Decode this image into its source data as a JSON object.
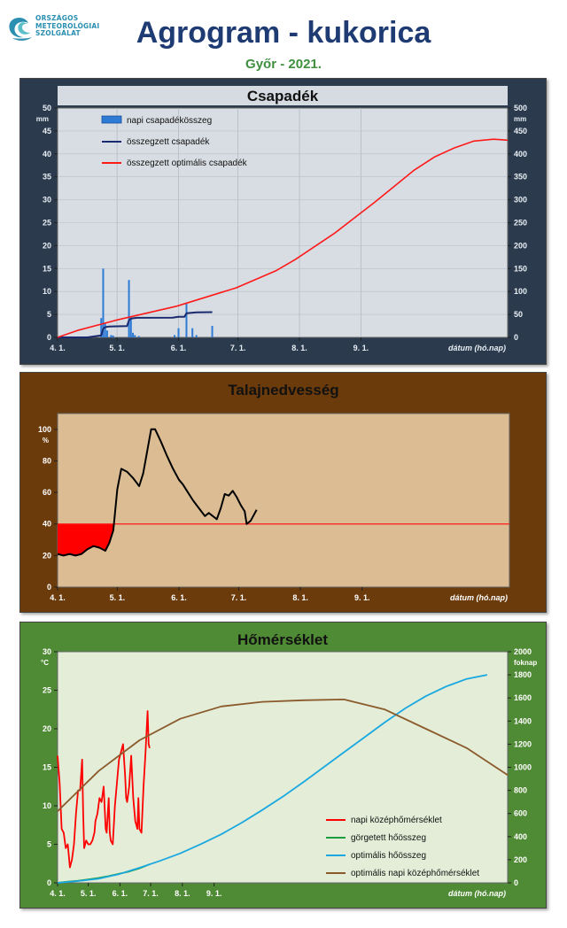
{
  "header": {
    "logo_lines": [
      "ORSZÁGOS",
      "METEOROLÓGIAI",
      "SZOLGÁLAT"
    ],
    "title": "Agrogram - kukorica",
    "subtitle": "Győr - 2021."
  },
  "colors": {
    "precip_panel_bg": "#2b3a4c",
    "precip_plot_bg": "#d8dde3",
    "soil_panel_bg": "#6b3b0c",
    "soil_plot_bg": "#dbbc93",
    "temp_panel_bg": "#4f8a34",
    "temp_plot_bg": "#e3edd8"
  },
  "chart_data": [
    {
      "type": "bar+line",
      "title": "Csapadék",
      "xlabel": "dátum (hó.nap)",
      "x_ticks": [
        "4. 1.",
        "5. 1.",
        "6. 1.",
        "7. 1.",
        "8. 1.",
        "9. 1."
      ],
      "x_range_days": [
        0,
        183
      ],
      "ylabel": "mm",
      "ylim": [
        0,
        50
      ],
      "y_ticks": [
        0,
        5,
        10,
        15,
        20,
        25,
        30,
        35,
        40,
        45,
        50
      ],
      "y2label": "mm",
      "y2lim": [
        0,
        500
      ],
      "y2_ticks": [
        0,
        50,
        100,
        150,
        200,
        250,
        300,
        350,
        400,
        450,
        500
      ],
      "series": [
        {
          "name": "napi csapadékösszeg",
          "kind": "bar",
          "axis": "left",
          "color": "#2e7bd6",
          "points": [
            [
              22,
              4.2
            ],
            [
              23,
              15
            ],
            [
              24,
              3
            ],
            [
              25,
              1.5
            ],
            [
              27,
              0.5
            ],
            [
              28,
              0.4
            ],
            [
              36,
              12.5
            ],
            [
              37,
              4
            ],
            [
              38,
              1
            ],
            [
              39,
              0.5
            ],
            [
              41,
              0.3
            ],
            [
              59,
              0.5
            ],
            [
              61,
              2
            ],
            [
              65,
              7.5
            ],
            [
              68,
              2
            ],
            [
              70,
              0.5
            ],
            [
              78,
              2.5
            ]
          ]
        },
        {
          "name": "összegzett csapadék",
          "kind": "line",
          "axis": "right",
          "color": "#1a2a6e",
          "points": [
            [
              0,
              0
            ],
            [
              15,
              0
            ],
            [
              22,
              4.2
            ],
            [
              23,
              19.2
            ],
            [
              24,
              22.2
            ],
            [
              26,
              23.7
            ],
            [
              35,
              24.6
            ],
            [
              36,
              37.1
            ],
            [
              37,
              41.1
            ],
            [
              40,
              42.6
            ],
            [
              58,
              43
            ],
            [
              61,
              45
            ],
            [
              64,
              45
            ],
            [
              65,
              52.5
            ],
            [
              70,
              54.5
            ],
            [
              78,
              55
            ]
          ]
        },
        {
          "name": "összegzett optimális csapadék",
          "kind": "line",
          "axis": "right",
          "color": "#ff1a1a",
          "points": [
            [
              0,
              0
            ],
            [
              10,
              15
            ],
            [
              30,
              38
            ],
            [
              60,
              68
            ],
            [
              90,
              108
            ],
            [
              110,
              145
            ],
            [
              120,
              170
            ],
            [
              140,
              228
            ],
            [
              160,
              295
            ],
            [
              170,
              330
            ],
            [
              180,
              365
            ],
            [
              190,
              393
            ],
            [
              200,
              413
            ],
            [
              210,
              428
            ],
            [
              220,
              432
            ],
            [
              227,
              430
            ]
          ]
        }
      ],
      "legend": "top-left"
    },
    {
      "type": "line",
      "title": "Talajnedvesség",
      "xlabel": "dátum (hó.nap)",
      "x_ticks": [
        "4. 1.",
        "5. 1.",
        "6. 1.",
        "7. 1.",
        "8. 1.",
        "9. 1."
      ],
      "ylabel": "%",
      "ylim": [
        0,
        110
      ],
      "y_ticks": [
        0,
        20,
        40,
        60,
        80,
        100
      ],
      "series": [
        {
          "name": "talajnedvesség",
          "color": "#000000",
          "points": [
            [
              0,
              21
            ],
            [
              3,
              20
            ],
            [
              6,
              21
            ],
            [
              9,
              20
            ],
            [
              12,
              21
            ],
            [
              15,
              24
            ],
            [
              18,
              26
            ],
            [
              21,
              25
            ],
            [
              24,
              23
            ],
            [
              26,
              28
            ],
            [
              28,
              36
            ],
            [
              30,
              62
            ],
            [
              32,
              75
            ],
            [
              35,
              73
            ],
            [
              38,
              69
            ],
            [
              41,
              64
            ],
            [
              43,
              72
            ],
            [
              45,
              86
            ],
            [
              47,
              100
            ],
            [
              49,
              100
            ],
            [
              52,
              92
            ],
            [
              55,
              83
            ],
            [
              58,
              75
            ],
            [
              61,
              68
            ],
            [
              63,
              65
            ],
            [
              65,
              61
            ],
            [
              68,
              55
            ],
            [
              71,
              50
            ],
            [
              74,
              45
            ],
            [
              76,
              47
            ],
            [
              78,
              45
            ],
            [
              80,
              43
            ],
            [
              82,
              50
            ],
            [
              84,
              59
            ],
            [
              86,
              58
            ],
            [
              88,
              61
            ],
            [
              90,
              57
            ],
            [
              92,
              52
            ],
            [
              94,
              48
            ],
            [
              95,
              40
            ],
            [
              97,
              42
            ],
            [
              100,
              49
            ]
          ]
        }
      ],
      "threshold": {
        "value": 40,
        "color": "#ff1a1a",
        "x_range": [
          0,
          227
        ]
      },
      "fill_below": {
        "value": 40,
        "x_range": [
          0,
          28
        ],
        "color": "#ff0000"
      }
    },
    {
      "type": "line",
      "title": "Hőmérséklet",
      "xlabel": "dátum (hó.nap)",
      "x_ticks": [
        "4. 1.",
        "5. 1.",
        "6. 1.",
        "7. 1.",
        "8. 1.",
        "9. 1."
      ],
      "ylabel": "°C",
      "ylim": [
        0,
        30
      ],
      "y_ticks": [
        0,
        5,
        10,
        15,
        20,
        25,
        30
      ],
      "y2label": "foknap",
      "y2lim": [
        0,
        2000
      ],
      "y2_ticks": [
        0,
        200,
        400,
        600,
        800,
        1000,
        1200,
        1400,
        1600,
        1800,
        2000
      ],
      "series": [
        {
          "name": "napi középhőmérséklet",
          "axis": "left",
          "color": "#ff0000",
          "points": [
            [
              0,
              16.5
            ],
            [
              2,
              13
            ],
            [
              4,
              7
            ],
            [
              6,
              6.5
            ],
            [
              8,
              4.5
            ],
            [
              10,
              5
            ],
            [
              12,
              2
            ],
            [
              14,
              3
            ],
            [
              16,
              5
            ],
            [
              18,
              9
            ],
            [
              20,
              12
            ],
            [
              22,
              12
            ],
            [
              24,
              16
            ],
            [
              25,
              9
            ],
            [
              26,
              4.5
            ],
            [
              28,
              5.5
            ],
            [
              30,
              5
            ],
            [
              32,
              5
            ],
            [
              34,
              5.5
            ],
            [
              36,
              6.5
            ],
            [
              37,
              8
            ],
            [
              39,
              9
            ],
            [
              41,
              11
            ],
            [
              43,
              10.5
            ],
            [
              45,
              12.5
            ],
            [
              47,
              7
            ],
            [
              48,
              6.5
            ],
            [
              50,
              11
            ],
            [
              51,
              6.5
            ],
            [
              52,
              5.5
            ],
            [
              54,
              5
            ],
            [
              56,
              10
            ],
            [
              58,
              13
            ],
            [
              60,
              16
            ],
            [
              62,
              17
            ],
            [
              64,
              18
            ],
            [
              66,
              14
            ],
            [
              67,
              11
            ],
            [
              68,
              10.5
            ],
            [
              70,
              12.5
            ],
            [
              72,
              16.5
            ],
            [
              74,
              11
            ],
            [
              76,
              8
            ],
            [
              78,
              7
            ],
            [
              79,
              11
            ],
            [
              80,
              7
            ],
            [
              82,
              6.5
            ],
            [
              84,
              12.5
            ],
            [
              86,
              17
            ],
            [
              88,
              22.3
            ],
            [
              89,
              18
            ],
            [
              90,
              17.5
            ]
          ]
        },
        {
          "name": "görgetett hőösszeg",
          "axis": "right",
          "color": "#1a9e3c",
          "points": [
            [
              0,
              0
            ],
            [
              10,
              10
            ],
            [
              20,
              18
            ],
            [
              30,
              30
            ],
            [
              40,
              42
            ],
            [
              50,
              58
            ],
            [
              60,
              78
            ],
            [
              70,
              98
            ],
            [
              80,
              125
            ],
            [
              90,
              160
            ]
          ]
        },
        {
          "name": "optimális hőösszeg",
          "axis": "right",
          "color": "#1aa8e0",
          "points": [
            [
              0,
              0
            ],
            [
              20,
              15
            ],
            [
              40,
              35
            ],
            [
              60,
              75
            ],
            [
              80,
              130
            ],
            [
              100,
              190
            ],
            [
              120,
              255
            ],
            [
              140,
              335
            ],
            [
              160,
              420
            ],
            [
              180,
              520
            ],
            [
              200,
              630
            ],
            [
              220,
              745
            ],
            [
              240,
              870
            ],
            [
              260,
              1000
            ],
            [
              280,
              1130
            ],
            [
              300,
              1260
            ],
            [
              320,
              1390
            ],
            [
              340,
              1510
            ],
            [
              360,
              1615
            ],
            [
              380,
              1700
            ],
            [
              400,
              1765
            ],
            [
              420,
              1800
            ]
          ]
        },
        {
          "name": "optimális napi középhőmérséklet",
          "axis": "left",
          "color": "#8b5a2b",
          "points": [
            [
              0,
              9.3
            ],
            [
              40,
              14.5
            ],
            [
              80,
              18.5
            ],
            [
              120,
              21.3
            ],
            [
              160,
              22.9
            ],
            [
              200,
              23.5
            ],
            [
              240,
              23.7
            ],
            [
              280,
              23.8
            ],
            [
              320,
              22.5
            ],
            [
              360,
              20
            ],
            [
              400,
              17.5
            ],
            [
              440,
              14
            ]
          ]
        }
      ],
      "legend": "bottom-right"
    }
  ]
}
